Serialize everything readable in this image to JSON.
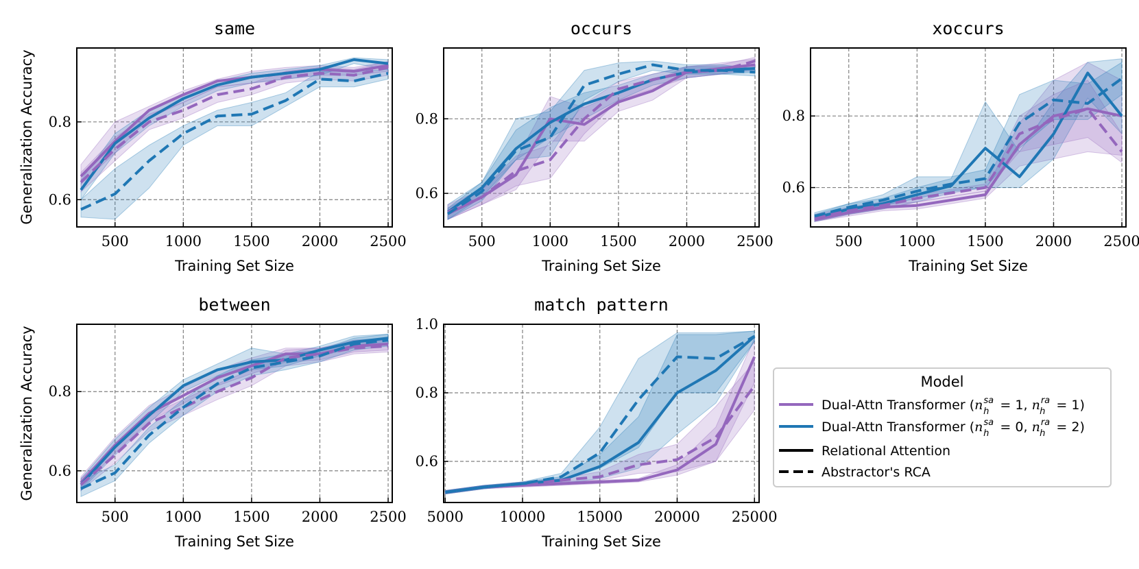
{
  "colors": {
    "purple": "#9467bd",
    "blue": "#1f77b4"
  },
  "legend": {
    "title": "Model",
    "placement": "right-bottom",
    "entries": [
      {
        "label": "Dual-Attn Transformer (",
        "math": "n_h^sa = 1, n_h^ra = 1",
        "math_sup1": "sa",
        "math_eq1": " = 1, ",
        "math_sup2": "ra",
        "math_eq2": " = 1)",
        "style": "purple-line"
      },
      {
        "label": "Dual-Attn Transformer (",
        "math": "n_h^sa = 0, n_h^ra = 2",
        "math_sup1": "sa",
        "math_eq1": " = 0, ",
        "math_sup2": "ra",
        "math_eq2": " = 2)",
        "style": "blue-line"
      },
      {
        "label": "Relational Attention",
        "style": "solid"
      },
      {
        "label": "Abstractor's RCA",
        "style": "dashed"
      }
    ]
  },
  "chart_data": [
    {
      "type": "line",
      "title": "same",
      "xlabel": "Training Set Size",
      "ylabel": "Generalization Accuracy",
      "xlim": [
        220,
        2530
      ],
      "ylim": [
        0.53,
        0.99
      ],
      "xticks": [
        500,
        1000,
        1500,
        2000,
        2500
      ],
      "xtick_labels": [
        "500",
        "1000",
        "1500",
        "2000",
        "2500"
      ],
      "yticks": [
        0.6,
        0.8
      ],
      "ytick_labels": [
        "0.6",
        "0.8"
      ],
      "grid": true,
      "x": [
        250,
        500,
        750,
        1000,
        1250,
        1500,
        1750,
        2000,
        2250,
        2500
      ],
      "series": [
        {
          "model": "purple",
          "attention": "solid",
          "values": [
            0.66,
            0.75,
            0.83,
            0.87,
            0.905,
            0.915,
            0.925,
            0.935,
            0.93,
            0.945
          ],
          "lower": [
            0.64,
            0.72,
            0.81,
            0.85,
            0.89,
            0.9,
            0.91,
            0.92,
            0.92,
            0.93
          ],
          "upper": [
            0.69,
            0.8,
            0.84,
            0.88,
            0.91,
            0.93,
            0.94,
            0.945,
            0.94,
            0.955
          ]
        },
        {
          "model": "blue",
          "attention": "solid",
          "values": [
            0.625,
            0.745,
            0.81,
            0.86,
            0.895,
            0.915,
            0.925,
            0.935,
            0.96,
            0.95
          ],
          "lower": [
            0.6,
            0.72,
            0.79,
            0.84,
            0.88,
            0.9,
            0.91,
            0.92,
            0.95,
            0.935
          ],
          "upper": [
            0.65,
            0.77,
            0.83,
            0.87,
            0.905,
            0.925,
            0.935,
            0.945,
            0.965,
            0.96
          ]
        },
        {
          "model": "purple",
          "attention": "dashed",
          "values": [
            0.645,
            0.73,
            0.8,
            0.83,
            0.87,
            0.885,
            0.915,
            0.925,
            0.92,
            0.94
          ],
          "lower": [
            0.62,
            0.7,
            0.78,
            0.81,
            0.85,
            0.87,
            0.9,
            0.91,
            0.905,
            0.92
          ],
          "upper": [
            0.67,
            0.76,
            0.82,
            0.85,
            0.89,
            0.9,
            0.93,
            0.94,
            0.935,
            0.955
          ]
        },
        {
          "model": "blue",
          "attention": "dashed",
          "values": [
            0.575,
            0.615,
            0.7,
            0.77,
            0.815,
            0.82,
            0.855,
            0.91,
            0.905,
            0.925
          ],
          "lower": [
            0.555,
            0.55,
            0.63,
            0.74,
            0.79,
            0.79,
            0.84,
            0.89,
            0.89,
            0.91
          ],
          "upper": [
            0.6,
            0.68,
            0.74,
            0.79,
            0.83,
            0.85,
            0.875,
            0.93,
            0.93,
            0.935
          ]
        }
      ]
    },
    {
      "type": "line",
      "title": "occurs",
      "xlabel": "Training Set Size",
      "ylabel": "",
      "xlim": [
        220,
        2530
      ],
      "ylim": [
        0.51,
        0.99
      ],
      "xticks": [
        500,
        1000,
        1500,
        2000,
        2500
      ],
      "xtick_labels": [
        "500",
        "1000",
        "1500",
        "2000",
        "2500"
      ],
      "yticks": [
        0.6,
        0.8
      ],
      "ytick_labels": [
        "0.6",
        "0.8"
      ],
      "grid": true,
      "x": [
        250,
        500,
        750,
        1000,
        1250,
        1500,
        1750,
        2000,
        2250,
        2500
      ],
      "series": [
        {
          "model": "purple",
          "attention": "solid",
          "values": [
            0.545,
            0.59,
            0.65,
            0.8,
            0.785,
            0.845,
            0.875,
            0.925,
            0.935,
            0.945
          ],
          "lower": [
            0.53,
            0.57,
            0.61,
            0.74,
            0.74,
            0.82,
            0.85,
            0.91,
            0.92,
            0.93
          ],
          "upper": [
            0.56,
            0.61,
            0.69,
            0.86,
            0.83,
            0.87,
            0.9,
            0.94,
            0.95,
            0.96
          ]
        },
        {
          "model": "blue",
          "attention": "solid",
          "values": [
            0.55,
            0.615,
            0.72,
            0.79,
            0.84,
            0.87,
            0.905,
            0.925,
            0.93,
            0.935
          ],
          "lower": [
            0.53,
            0.59,
            0.69,
            0.75,
            0.8,
            0.85,
            0.89,
            0.91,
            0.92,
            0.925
          ],
          "upper": [
            0.57,
            0.63,
            0.77,
            0.83,
            0.87,
            0.89,
            0.92,
            0.94,
            0.94,
            0.945
          ]
        },
        {
          "model": "purple",
          "attention": "dashed",
          "values": [
            0.55,
            0.59,
            0.66,
            0.69,
            0.8,
            0.88,
            0.905,
            0.925,
            0.93,
            0.955
          ],
          "lower": [
            0.53,
            0.57,
            0.62,
            0.64,
            0.76,
            0.85,
            0.88,
            0.91,
            0.92,
            0.94
          ],
          "upper": [
            0.57,
            0.61,
            0.7,
            0.73,
            0.84,
            0.9,
            0.92,
            0.94,
            0.945,
            0.965
          ]
        },
        {
          "model": "blue",
          "attention": "dashed",
          "values": [
            0.545,
            0.605,
            0.715,
            0.75,
            0.89,
            0.92,
            0.945,
            0.93,
            0.93,
            0.925
          ],
          "lower": [
            0.53,
            0.58,
            0.69,
            0.7,
            0.85,
            0.9,
            0.93,
            0.92,
            0.92,
            0.915
          ],
          "upper": [
            0.56,
            0.63,
            0.8,
            0.82,
            0.93,
            0.95,
            0.955,
            0.945,
            0.945,
            0.935
          ]
        }
      ]
    },
    {
      "type": "line",
      "title": "xoccurs",
      "xlabel": "Training Set Size",
      "ylabel": "",
      "xlim": [
        220,
        2530
      ],
      "ylim": [
        0.49,
        0.99
      ],
      "xticks": [
        500,
        1000,
        1500,
        2000,
        2500
      ],
      "xtick_labels": [
        "500",
        "1000",
        "1500",
        "2000",
        "2500"
      ],
      "yticks": [
        0.6,
        0.8
      ],
      "ytick_labels": [
        "0.6",
        "0.8"
      ],
      "grid": true,
      "x": [
        250,
        500,
        750,
        1000,
        1250,
        1500,
        1750,
        2000,
        2250,
        2500
      ],
      "series": [
        {
          "model": "purple",
          "attention": "solid",
          "values": [
            0.51,
            0.53,
            0.545,
            0.55,
            0.565,
            0.58,
            0.72,
            0.8,
            0.82,
            0.8
          ],
          "lower": [
            0.505,
            0.52,
            0.535,
            0.54,
            0.555,
            0.57,
            0.66,
            0.68,
            0.7,
            0.69
          ],
          "upper": [
            0.52,
            0.54,
            0.555,
            0.56,
            0.575,
            0.59,
            0.78,
            0.9,
            0.95,
            0.9
          ]
        },
        {
          "model": "blue",
          "attention": "solid",
          "values": [
            0.515,
            0.54,
            0.555,
            0.58,
            0.605,
            0.71,
            0.63,
            0.75,
            0.92,
            0.8
          ],
          "lower": [
            0.505,
            0.525,
            0.54,
            0.56,
            0.585,
            0.6,
            0.6,
            0.68,
            0.85,
            0.75
          ],
          "upper": [
            0.525,
            0.555,
            0.57,
            0.6,
            0.625,
            0.84,
            0.7,
            0.84,
            0.95,
            0.96
          ]
        },
        {
          "model": "purple",
          "attention": "dashed",
          "values": [
            0.515,
            0.535,
            0.55,
            0.57,
            0.585,
            0.6,
            0.75,
            0.79,
            0.82,
            0.7
          ],
          "lower": [
            0.505,
            0.525,
            0.54,
            0.56,
            0.575,
            0.59,
            0.7,
            0.72,
            0.74,
            0.67
          ],
          "upper": [
            0.525,
            0.545,
            0.56,
            0.58,
            0.595,
            0.61,
            0.8,
            0.86,
            0.9,
            0.75
          ]
        },
        {
          "model": "blue",
          "attention": "dashed",
          "values": [
            0.52,
            0.545,
            0.565,
            0.59,
            0.61,
            0.625,
            0.78,
            0.845,
            0.835,
            0.905
          ],
          "lower": [
            0.51,
            0.535,
            0.55,
            0.57,
            0.59,
            0.6,
            0.71,
            0.79,
            0.79,
            0.86
          ],
          "upper": [
            0.53,
            0.555,
            0.58,
            0.63,
            0.63,
            0.65,
            0.86,
            0.9,
            0.89,
            0.95
          ]
        }
      ]
    },
    {
      "type": "line",
      "title": "between",
      "xlabel": "Training Set Size",
      "ylabel": "Generalization Accuracy",
      "xlim": [
        220,
        2530
      ],
      "ylim": [
        0.52,
        0.97
      ],
      "xticks": [
        500,
        1000,
        1500,
        2000,
        2500
      ],
      "xtick_labels": [
        "500",
        "1000",
        "1500",
        "2000",
        "2500"
      ],
      "yticks": [
        0.6,
        0.8
      ],
      "ytick_labels": [
        "0.6",
        "0.8"
      ],
      "grid": true,
      "x": [
        250,
        500,
        750,
        1000,
        1250,
        1500,
        1750,
        2000,
        2250,
        2500
      ],
      "series": [
        {
          "model": "purple",
          "attention": "solid",
          "values": [
            0.57,
            0.665,
            0.745,
            0.79,
            0.835,
            0.865,
            0.895,
            0.895,
            0.915,
            0.92
          ],
          "lower": [
            0.555,
            0.645,
            0.725,
            0.77,
            0.815,
            0.845,
            0.875,
            0.88,
            0.9,
            0.905
          ],
          "upper": [
            0.585,
            0.685,
            0.765,
            0.81,
            0.855,
            0.885,
            0.91,
            0.91,
            0.93,
            0.935
          ]
        },
        {
          "model": "blue",
          "attention": "solid",
          "values": [
            0.565,
            0.66,
            0.74,
            0.815,
            0.855,
            0.875,
            0.88,
            0.905,
            0.925,
            0.935
          ],
          "lower": [
            0.55,
            0.64,
            0.72,
            0.8,
            0.84,
            0.855,
            0.865,
            0.89,
            0.91,
            0.92
          ],
          "upper": [
            0.58,
            0.68,
            0.76,
            0.83,
            0.87,
            0.91,
            0.895,
            0.915,
            0.94,
            0.945
          ]
        },
        {
          "model": "purple",
          "attention": "dashed",
          "values": [
            0.565,
            0.64,
            0.72,
            0.76,
            0.8,
            0.835,
            0.885,
            0.895,
            0.91,
            0.915
          ],
          "lower": [
            0.55,
            0.62,
            0.7,
            0.74,
            0.78,
            0.815,
            0.865,
            0.875,
            0.895,
            0.9
          ],
          "upper": [
            0.58,
            0.66,
            0.74,
            0.78,
            0.82,
            0.855,
            0.905,
            0.91,
            0.925,
            0.93
          ]
        },
        {
          "model": "blue",
          "attention": "dashed",
          "values": [
            0.555,
            0.595,
            0.69,
            0.76,
            0.82,
            0.86,
            0.875,
            0.89,
            0.92,
            0.93
          ],
          "lower": [
            0.535,
            0.575,
            0.67,
            0.74,
            0.8,
            0.84,
            0.855,
            0.875,
            0.905,
            0.915
          ],
          "upper": [
            0.575,
            0.615,
            0.71,
            0.78,
            0.84,
            0.88,
            0.895,
            0.905,
            0.935,
            0.945
          ]
        }
      ]
    },
    {
      "type": "line",
      "title": "match pattern",
      "xlabel": "Training Set Size",
      "ylabel": "",
      "xlim": [
        4900,
        25300
      ],
      "ylim": [
        0.48,
        1.0
      ],
      "xticks": [
        5000,
        10000,
        15000,
        20000,
        25000
      ],
      "xtick_labels": [
        "5000",
        "10000",
        "15000",
        "20000",
        "25000"
      ],
      "yticks": [
        0.6,
        0.8,
        1.0
      ],
      "ytick_labels": [
        "0.6",
        "0.8",
        "1.0"
      ],
      "grid": true,
      "x": [
        5000,
        7500,
        10000,
        12500,
        15000,
        17500,
        20000,
        22500,
        25000
      ],
      "series": [
        {
          "model": "purple",
          "attention": "solid",
          "values": [
            0.51,
            0.525,
            0.53,
            0.535,
            0.54,
            0.545,
            0.575,
            0.65,
            0.905
          ],
          "lower": [
            0.505,
            0.52,
            0.525,
            0.53,
            0.535,
            0.54,
            0.56,
            0.6,
            0.83
          ],
          "upper": [
            0.515,
            0.53,
            0.535,
            0.54,
            0.545,
            0.55,
            0.59,
            0.7,
            0.96
          ]
        },
        {
          "model": "blue",
          "attention": "solid",
          "values": [
            0.51,
            0.525,
            0.535,
            0.545,
            0.585,
            0.655,
            0.8,
            0.865,
            0.965
          ],
          "lower": [
            0.505,
            0.52,
            0.53,
            0.535,
            0.55,
            0.58,
            0.68,
            0.77,
            0.95
          ],
          "upper": [
            0.515,
            0.53,
            0.54,
            0.555,
            0.62,
            0.73,
            0.97,
            0.97,
            0.98
          ]
        },
        {
          "model": "purple",
          "attention": "dashed",
          "values": [
            0.51,
            0.525,
            0.535,
            0.545,
            0.555,
            0.59,
            0.605,
            0.67,
            0.82
          ],
          "lower": [
            0.505,
            0.52,
            0.53,
            0.54,
            0.545,
            0.565,
            0.57,
            0.6,
            0.75
          ],
          "upper": [
            0.515,
            0.53,
            0.54,
            0.55,
            0.57,
            0.62,
            0.65,
            0.76,
            0.89
          ]
        },
        {
          "model": "blue",
          "attention": "dashed",
          "values": [
            0.51,
            0.525,
            0.535,
            0.555,
            0.625,
            0.78,
            0.905,
            0.9,
            0.965
          ],
          "lower": [
            0.505,
            0.52,
            0.53,
            0.545,
            0.58,
            0.64,
            0.8,
            0.8,
            0.95
          ],
          "upper": [
            0.515,
            0.53,
            0.54,
            0.565,
            0.7,
            0.9,
            0.975,
            0.975,
            0.98
          ]
        }
      ]
    }
  ]
}
